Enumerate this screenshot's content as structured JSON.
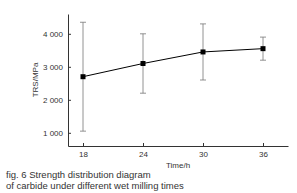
{
  "chart_data": {
    "type": "line",
    "title": [
      "fig. 6 Strength distribution diagram",
      "of carbide under different wet milling times"
    ],
    "x_label": "Time/h",
    "y_label": "TRS/MPa",
    "x": [
      18,
      24,
      30,
      36
    ],
    "values": [
      2700,
      3100,
      3450,
      3550
    ],
    "errors": [
      1650,
      900,
      850,
      350
    ],
    "color": "#000000",
    "marker": "square",
    "line_style": "solid",
    "xlim": [
      16.5,
      38.5
    ],
    "xticks": [
      18,
      24,
      30,
      36
    ],
    "ylim": [
      600,
      4600
    ],
    "yticks": [
      {
        "value": 1000,
        "label": "1 000"
      },
      {
        "value": 2000,
        "label": "2 000"
      },
      {
        "value": 3000,
        "label": "3 000"
      },
      {
        "value": 4000,
        "label": "4 000"
      }
    ],
    "grid": false
  }
}
